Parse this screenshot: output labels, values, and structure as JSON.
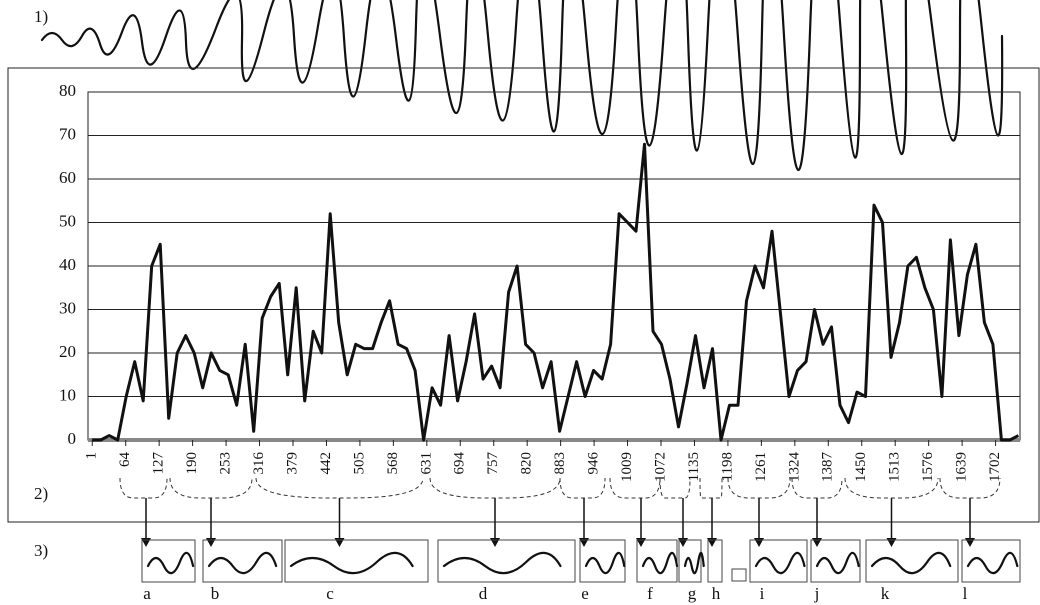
{
  "figure_labels": [
    "1)",
    "2)",
    "3)"
  ],
  "segments": [
    "a",
    "b",
    "c",
    "d",
    "e",
    "f",
    "g",
    "h",
    "i",
    "j",
    "k",
    "l"
  ],
  "chart_data": {
    "type": "line",
    "x": [
      1,
      17,
      33,
      49,
      65,
      81,
      97,
      113,
      129,
      145,
      161,
      177,
      193,
      209,
      225,
      241,
      257,
      273,
      289,
      305,
      321,
      337,
      353,
      369,
      385,
      401,
      417,
      433,
      449,
      465,
      481,
      497,
      513,
      529,
      545,
      561,
      577,
      593,
      609,
      625,
      641,
      657,
      673,
      689,
      705,
      721,
      737,
      753,
      769,
      785,
      801,
      817,
      833,
      849,
      865,
      881,
      897,
      913,
      929,
      945,
      961,
      977,
      993,
      1009,
      1025,
      1041,
      1057,
      1073,
      1089,
      1105,
      1121,
      1137,
      1153,
      1169,
      1185,
      1201,
      1217,
      1233,
      1249,
      1265,
      1281,
      1297,
      1313,
      1329,
      1345,
      1361,
      1377,
      1393,
      1409,
      1425,
      1441,
      1457,
      1473,
      1489,
      1505,
      1521,
      1537,
      1553,
      1569,
      1585,
      1601,
      1617,
      1633,
      1649,
      1665,
      1681,
      1697,
      1713,
      1729,
      1745
    ],
    "series": [
      {
        "color": "#111111",
        "values": [
          0,
          0,
          1,
          0,
          10,
          18,
          9,
          40,
          45,
          5,
          20,
          24,
          20,
          12,
          20,
          16,
          15,
          8,
          22,
          2,
          28,
          33,
          36,
          15,
          35,
          9,
          25,
          20,
          52,
          27,
          15,
          22,
          21,
          21,
          27,
          32,
          22,
          21,
          16,
          0,
          12,
          8,
          24,
          9,
          18,
          29,
          14,
          17,
          12,
          34,
          40,
          22,
          20,
          12,
          18,
          2,
          10,
          18,
          10,
          16,
          14,
          22,
          52,
          50,
          48,
          68,
          25,
          22,
          14,
          3,
          13,
          24,
          12,
          21,
          0,
          8,
          8,
          32,
          40,
          35,
          48,
          29,
          10,
          16,
          18,
          30,
          22,
          26,
          8,
          4,
          11,
          10,
          54,
          50,
          19,
          27,
          40,
          42,
          35,
          30,
          10,
          46,
          24,
          38,
          45,
          27,
          22,
          0,
          0,
          1
        ]
      }
    ],
    "xlim": [
      -7,
      1748
    ],
    "ylim": [
      0,
      80
    ],
    "xticks": [
      1,
      64,
      127,
      190,
      253,
      316,
      379,
      442,
      505,
      568,
      631,
      694,
      757,
      820,
      883,
      946,
      1009,
      1072,
      1135,
      1198,
      1261,
      1324,
      1387,
      1450,
      1513,
      1576,
      1639,
      1702
    ],
    "yticks": [
      0,
      10,
      20,
      30,
      40,
      50,
      60,
      70,
      80
    ],
    "grid": true
  }
}
